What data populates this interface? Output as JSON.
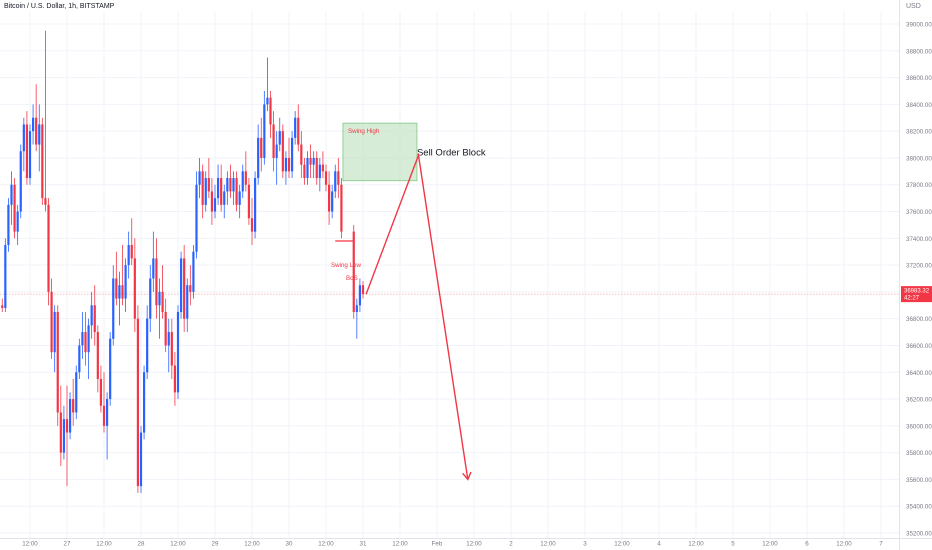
{
  "header": {
    "symbol_title": "Bitcoin / U.S. Dollar, 1h, BITSTAMP",
    "currency": "USD"
  },
  "price_badge": {
    "price": "36983.32",
    "countdown": "42:27"
  },
  "annotations": {
    "swing_high": "Swing High",
    "swing_low": "Swing Low",
    "bos": "BoS",
    "order_block": "Sell Order Block"
  },
  "chart_data": {
    "type": "candlestick",
    "title": "Bitcoin / U.S. Dollar, 1h, BITSTAMP",
    "y_unit": "USD",
    "ylim": [
      35200,
      39300
    ],
    "y_ticks": [
      "39200.00",
      "39000.00",
      "38800.00",
      "38600.00",
      "38400.00",
      "38200.00",
      "38000.00",
      "37800.00",
      "37600.00",
      "37400.00",
      "37200.00",
      "37000.00",
      "36800.00",
      "36600.00",
      "36400.00",
      "36200.00",
      "36000.00",
      "35800.00",
      "35600.00",
      "35400.00",
      "35200.00"
    ],
    "x_ticks": [
      "12:00",
      "27",
      "12:00",
      "28",
      "12:00",
      "29",
      "12:00",
      "30",
      "12:00",
      "31",
      "12:00",
      "Feb",
      "12:00",
      "2",
      "12:00",
      "3",
      "12:00",
      "4",
      "12:00",
      "5",
      "12:00",
      "6",
      "12:00",
      "7"
    ],
    "x_tick_hours": [
      -12,
      0,
      12,
      24,
      36,
      48,
      60,
      72,
      84,
      96,
      108,
      120,
      132,
      144,
      156,
      168,
      180,
      192,
      204,
      216,
      228,
      240,
      252,
      264
    ],
    "x_range_hours": [
      -22,
      268
    ],
    "grid": true,
    "current_price": 36983.32,
    "candles": [
      [
        -21,
        36900,
        36950,
        36850,
        36880
      ],
      [
        -20,
        36880,
        37400,
        36850,
        37350
      ],
      [
        -19,
        37350,
        37700,
        37300,
        37650
      ],
      [
        -18,
        37650,
        37900,
        37500,
        37800
      ],
      [
        -17,
        37800,
        37850,
        37400,
        37450
      ],
      [
        -16,
        37450,
        37650,
        37350,
        37600
      ],
      [
        -15,
        37600,
        38100,
        37550,
        38050
      ],
      [
        -14,
        38050,
        38300,
        37900,
        38250
      ],
      [
        -13,
        38250,
        38350,
        37800,
        37850
      ],
      [
        -12,
        37850,
        38250,
        37800,
        38200
      ],
      [
        -11,
        38200,
        38400,
        38100,
        38300
      ],
      [
        -10,
        38300,
        38550,
        38050,
        38100
      ],
      [
        -9,
        38100,
        38400,
        37900,
        38250
      ],
      [
        -8,
        38250,
        38300,
        37650,
        37700
      ],
      [
        -7,
        37700,
        38950,
        37600,
        37650
      ],
      [
        -6,
        37650,
        37700,
        36900,
        37000
      ],
      [
        -5,
        37000,
        37100,
        36500,
        36550
      ],
      [
        -4,
        36550,
        36900,
        36400,
        36850
      ],
      [
        -3,
        36850,
        36900,
        36000,
        36100
      ],
      [
        -2,
        36100,
        36300,
        35700,
        35800
      ],
      [
        -1,
        35800,
        36150,
        35750,
        36050
      ],
      [
        0,
        36050,
        36300,
        35550,
        35950
      ],
      [
        1,
        35950,
        36250,
        35900,
        36200
      ],
      [
        2,
        36200,
        36350,
        36000,
        36100
      ],
      [
        3,
        36100,
        36450,
        36050,
        36400
      ],
      [
        4,
        36400,
        36650,
        36350,
        36600
      ],
      [
        5,
        36600,
        36850,
        36500,
        36700
      ],
      [
        6,
        36700,
        36850,
        36450,
        36550
      ],
      [
        7,
        36550,
        36800,
        36350,
        36750
      ],
      [
        8,
        36750,
        37000,
        36650,
        36900
      ],
      [
        9,
        36900,
        37050,
        36600,
        36700
      ],
      [
        10,
        36700,
        36750,
        36250,
        36350
      ],
      [
        11,
        36350,
        36450,
        36100,
        36150
      ],
      [
        12,
        36150,
        36400,
        35950,
        36000
      ],
      [
        13,
        36000,
        36250,
        35750,
        36200
      ],
      [
        14,
        36200,
        36700,
        36150,
        36650
      ],
      [
        15,
        36650,
        37200,
        36600,
        37100
      ],
      [
        16,
        37100,
        37300,
        36900,
        36950
      ],
      [
        17,
        36950,
        37150,
        36750,
        37050
      ],
      [
        18,
        37050,
        37350,
        36900,
        36950
      ],
      [
        19,
        36950,
        37250,
        36850,
        37200
      ],
      [
        20,
        37200,
        37450,
        37100,
        37350
      ],
      [
        21,
        37350,
        37550,
        37200,
        37250
      ],
      [
        22,
        37250,
        37400,
        36700,
        36800
      ],
      [
        23,
        36800,
        36900,
        35500,
        35550
      ],
      [
        24,
        35550,
        36000,
        35500,
        35950
      ],
      [
        25,
        35950,
        36450,
        35900,
        36400
      ],
      [
        26,
        36400,
        36900,
        36350,
        36800
      ],
      [
        27,
        36800,
        37200,
        36700,
        37100
      ],
      [
        28,
        37100,
        37450,
        37000,
        37250
      ],
      [
        29,
        37250,
        37400,
        36800,
        36900
      ],
      [
        30,
        36900,
        37100,
        36650,
        37000
      ],
      [
        31,
        37000,
        37200,
        36800,
        36850
      ],
      [
        32,
        36850,
        36950,
        36550,
        36600
      ],
      [
        33,
        36600,
        36800,
        36400,
        36700
      ],
      [
        34,
        36700,
        36800,
        36350,
        36450
      ],
      [
        35,
        36450,
        36550,
        36150,
        36250
      ],
      [
        36,
        36250,
        36900,
        36200,
        36850
      ],
      [
        37,
        36850,
        37300,
        36800,
        37250
      ],
      [
        38,
        37250,
        37350,
        36700,
        36800
      ],
      [
        39,
        36800,
        37100,
        36700,
        37050
      ],
      [
        40,
        37050,
        37200,
        36900,
        37000
      ],
      [
        41,
        37000,
        37350,
        36950,
        37300
      ],
      [
        42,
        37300,
        37900,
        37250,
        37800
      ],
      [
        43,
        37800,
        38000,
        37700,
        37900
      ],
      [
        44,
        37900,
        37950,
        37550,
        37650
      ],
      [
        45,
        37650,
        37900,
        37600,
        37850
      ],
      [
        46,
        37850,
        38000,
        37700,
        37750
      ],
      [
        47,
        37750,
        37850,
        37500,
        37600
      ],
      [
        48,
        37600,
        37800,
        37550,
        37700
      ],
      [
        49,
        37700,
        37950,
        37650,
        37850
      ],
      [
        50,
        37850,
        37950,
        37600,
        37650
      ],
      [
        51,
        37650,
        37800,
        37550,
        37750
      ],
      [
        52,
        37750,
        37900,
        37650,
        37850
      ],
      [
        53,
        37850,
        37950,
        37700,
        37750
      ],
      [
        54,
        37750,
        37900,
        37650,
        37850
      ],
      [
        55,
        37850,
        37900,
        37600,
        37650
      ],
      [
        56,
        37650,
        37800,
        37550,
        37750
      ],
      [
        57,
        37750,
        37950,
        37700,
        37900
      ],
      [
        58,
        37900,
        38050,
        37750,
        37800
      ],
      [
        59,
        37800,
        37850,
        37500,
        37550
      ],
      [
        60,
        37550,
        37700,
        37350,
        37450
      ],
      [
        61,
        37450,
        37900,
        37400,
        37850
      ],
      [
        62,
        37850,
        38250,
        37800,
        38150
      ],
      [
        63,
        38150,
        38300,
        37900,
        38000
      ],
      [
        64,
        38000,
        38500,
        37950,
        38400
      ],
      [
        65,
        38400,
        38750,
        38350,
        38450
      ],
      [
        66,
        38450,
        38500,
        38150,
        38250
      ],
      [
        67,
        38250,
        38350,
        37900,
        38000
      ],
      [
        68,
        38000,
        38200,
        37800,
        38100
      ],
      [
        69,
        38100,
        38300,
        38050,
        38200
      ],
      [
        70,
        38200,
        38250,
        37850,
        37900
      ],
      [
        71,
        37900,
        38050,
        37800,
        38000
      ],
      [
        72,
        38000,
        38150,
        37850,
        37900
      ],
      [
        73,
        37900,
        38200,
        37850,
        38150
      ],
      [
        74,
        38150,
        38350,
        38100,
        38300
      ],
      [
        75,
        38300,
        38400,
        38050,
        38100
      ],
      [
        76,
        38100,
        38200,
        37850,
        37950
      ],
      [
        77,
        37950,
        38000,
        37800,
        37850
      ],
      [
        78,
        37850,
        38050,
        37800,
        38000
      ],
      [
        79,
        38000,
        38100,
        37850,
        37950
      ],
      [
        80,
        37950,
        38050,
        37850,
        38000
      ],
      [
        81,
        38000,
        38050,
        37800,
        37850
      ],
      [
        82,
        37850,
        38000,
        37750,
        37950
      ],
      [
        83,
        37950,
        38050,
        37850,
        37900
      ],
      [
        84,
        37900,
        37950,
        37750,
        37800
      ],
      [
        85,
        37800,
        37900,
        37500,
        37600
      ],
      [
        86,
        37600,
        37800,
        37550,
        37750
      ],
      [
        87,
        37750,
        37950,
        37700,
        37900
      ],
      [
        88,
        37900,
        38000,
        37700,
        37800
      ],
      [
        89,
        37800,
        37850,
        37400,
        37450
      ],
      [
        93,
        37450,
        37500,
        36800,
        36850
      ],
      [
        94,
        36850,
        36950,
        36650,
        36900
      ],
      [
        95,
        36900,
        37100,
        36850,
        37050
      ],
      [
        96,
        37050,
        37080,
        36950,
        36983
      ]
    ],
    "candle_colors": {
      "up": "#2962ff",
      "down": "#f23645"
    },
    "drawings": {
      "order_block_zone": {
        "price_top": 38260,
        "price_bottom": 37830,
        "time_start": 89.5,
        "time_end": 113.5,
        "fill": "#c8e6c9",
        "border": "#81c784"
      },
      "swing_low_line": {
        "price": 37380,
        "time_start": 87,
        "time_end": 93
      },
      "projection_path": [
        [
          97,
          36983
        ],
        [
          114,
          38020
        ],
        [
          130,
          35600
        ]
      ],
      "projection_color": "#f23645"
    }
  }
}
